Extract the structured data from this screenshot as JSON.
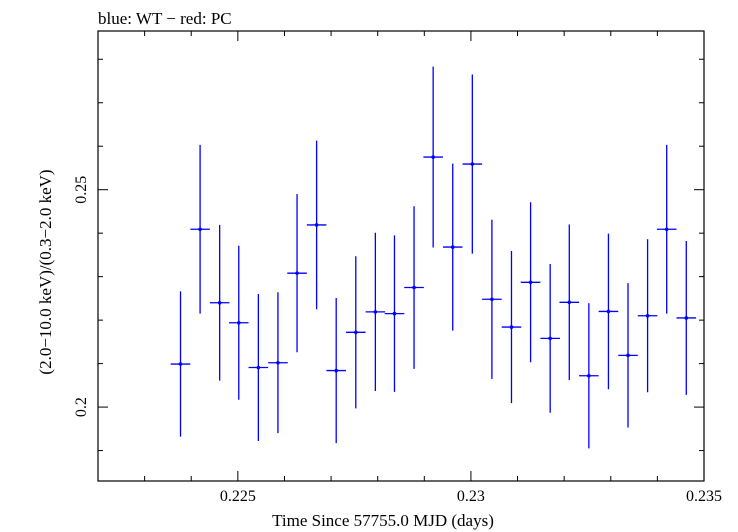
{
  "chart_data": {
    "type": "scatter",
    "title": "blue: WT − red: PC",
    "xlabel": "Time Since 57755.0 MJD (days)",
    "ylabel": "(2.0−10.0 keV)/(0.3−2.0 keV)",
    "xlim": [
      0.222,
      0.235
    ],
    "ylim": [
      0.183,
      0.2865
    ],
    "x_ticks": [
      0.225,
      0.23,
      0.235
    ],
    "x_tick_labels": [
      "0.225",
      "0.23",
      "0.235"
    ],
    "y_ticks": [
      0.2,
      0.25
    ],
    "y_tick_labels": [
      "0.2",
      "0.25"
    ],
    "grid": false,
    "series": [
      {
        "color": "#0000ff",
        "x": [
          0.22377,
          0.22419,
          0.22461,
          0.22502,
          0.22544,
          0.22586,
          0.22627,
          0.22669,
          0.22711,
          0.22753,
          0.22795,
          0.22836,
          0.22878,
          0.22919,
          0.22961,
          0.23003,
          0.23045,
          0.23087,
          0.23128,
          0.2317,
          0.23211,
          0.23253,
          0.23295,
          0.23337,
          0.23379,
          0.2342
        ],
        "x_err": [
          0.00021,
          0.00021,
          0.00021,
          0.00021,
          0.00021,
          0.00021,
          0.00021,
          0.00021,
          0.00021,
          0.00021,
          0.00021,
          0.00021,
          0.00021,
          0.00021,
          0.00021,
          0.00021,
          0.00021,
          0.00021,
          0.00021,
          0.00021,
          0.00021,
          0.00021,
          0.00021,
          0.00021,
          0.00021,
          0.00021
        ],
        "y": [
          0.2099,
          0.2409,
          0.224,
          0.2194,
          0.2091,
          0.2102,
          0.2308,
          0.2419,
          0.2084,
          0.2172,
          0.2219,
          0.2215,
          0.2275,
          0.2575,
          0.2368,
          0.2559,
          0.2248,
          0.2184,
          0.2287,
          0.2158,
          0.2241,
          0.2072,
          0.222,
          0.2119,
          0.221,
          0.2409
        ],
        "y_err_low": [
          0.0167,
          0.0194,
          0.0179,
          0.0177,
          0.0169,
          0.0162,
          0.0182,
          0.0194,
          0.0167,
          0.0175,
          0.0182,
          0.018,
          0.0187,
          0.0208,
          0.0192,
          0.0206,
          0.0183,
          0.0175,
          0.0184,
          0.0171,
          0.0179,
          0.0167,
          0.0179,
          0.0166,
          0.0176,
          0.0194
        ],
        "y_err_high": [
          0.0167,
          0.0194,
          0.0179,
          0.0177,
          0.0169,
          0.0162,
          0.0182,
          0.0194,
          0.0167,
          0.0175,
          0.0182,
          0.018,
          0.0187,
          0.0208,
          0.0192,
          0.0206,
          0.0183,
          0.0175,
          0.0184,
          0.0171,
          0.0179,
          0.0167,
          0.0179,
          0.0166,
          0.0176,
          0.0194
        ]
      }
    ],
    "last_point": {
      "x": 0.23462,
      "y": 0.2205,
      "x_err": 0.00021,
      "y_err": 0.0177
    }
  }
}
